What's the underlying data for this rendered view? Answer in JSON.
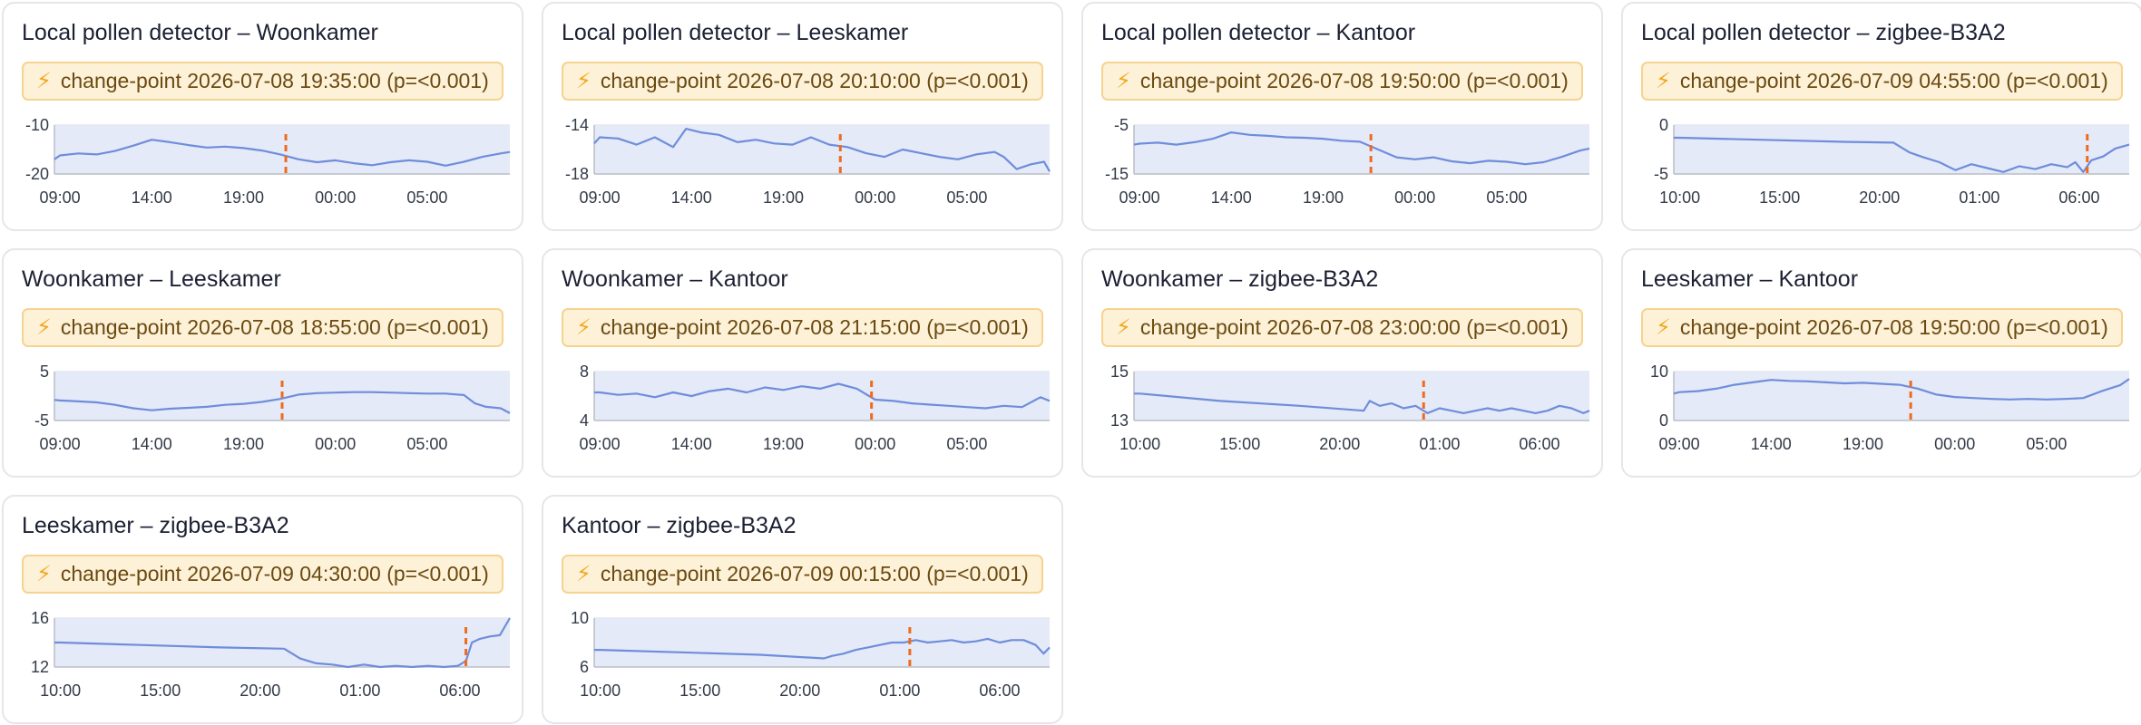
{
  "panels": [
    {
      "title": "Local pollen detector – Woonkamer",
      "badge": "change-point 2026-07-08 19:35:00 (p=<0.001)",
      "chart_data": {
        "type": "area",
        "y_ticks": [
          "-10",
          "-20"
        ],
        "ylim": [
          -20,
          -10
        ],
        "x_ticks": [
          {
            "label": "09:00",
            "t": 0
          },
          {
            "label": "14:00",
            "t": 5
          },
          {
            "label": "19:00",
            "t": 10
          },
          {
            "label": "00:00",
            "t": 15
          },
          {
            "label": "05:00",
            "t": 20
          }
        ],
        "xlim": [
          -0.3,
          24.5
        ],
        "change_point": 12.3,
        "x": [
          -0.3,
          0,
          1,
          2,
          3,
          4,
          5,
          6,
          7,
          8,
          9,
          10,
          11,
          12,
          13,
          14,
          15,
          16,
          17,
          18,
          19,
          20,
          21,
          22,
          23,
          24,
          24.5
        ],
        "y": [
          -17,
          -16.2,
          -15.8,
          -16.0,
          -15.3,
          -14.2,
          -13.0,
          -13.5,
          -14.1,
          -14.6,
          -14.4,
          -14.7,
          -15.2,
          -16.0,
          -17.0,
          -17.6,
          -17.2,
          -17.8,
          -18.2,
          -17.6,
          -17.2,
          -17.5,
          -18.3,
          -17.5,
          -16.5,
          -15.8,
          -15.5
        ]
      }
    },
    {
      "title": "Local pollen detector – Leeskamer",
      "badge": "change-point 2026-07-08 20:10:00 (p=<0.001)",
      "chart_data": {
        "type": "area",
        "y_ticks": [
          "-14",
          "-18"
        ],
        "ylim": [
          -18,
          -14
        ],
        "x_ticks": [
          {
            "label": "09:00",
            "t": 0
          },
          {
            "label": "14:00",
            "t": 5
          },
          {
            "label": "19:00",
            "t": 10
          },
          {
            "label": "00:00",
            "t": 15
          },
          {
            "label": "05:00",
            "t": 20
          }
        ],
        "xlim": [
          -0.3,
          24.5
        ],
        "change_point": 13.1,
        "x": [
          -0.3,
          0,
          1,
          2,
          3,
          4,
          4.7,
          5.5,
          6.5,
          7.5,
          8.5,
          9.5,
          10.5,
          11.5,
          12.5,
          13.5,
          14.5,
          15.5,
          16.5,
          17.5,
          18.5,
          19.5,
          20.5,
          21.5,
          22,
          22.7,
          23.5,
          24.2,
          24.5
        ],
        "y": [
          -15.5,
          -15.0,
          -15.1,
          -15.6,
          -15.0,
          -15.8,
          -14.3,
          -14.6,
          -14.8,
          -15.4,
          -15.2,
          -15.5,
          -15.6,
          -15.0,
          -15.6,
          -15.8,
          -16.3,
          -16.6,
          -16.0,
          -16.3,
          -16.6,
          -16.8,
          -16.4,
          -16.2,
          -16.6,
          -17.6,
          -17.2,
          -17.0,
          -17.8
        ]
      }
    },
    {
      "title": "Local pollen detector – Kantoor",
      "badge": "change-point 2026-07-08 19:50:00 (p=<0.001)",
      "chart_data": {
        "type": "area",
        "y_ticks": [
          "-5",
          "-15"
        ],
        "ylim": [
          -15,
          -5
        ],
        "x_ticks": [
          {
            "label": "09:00",
            "t": 0
          },
          {
            "label": "14:00",
            "t": 5
          },
          {
            "label": "19:00",
            "t": 10
          },
          {
            "label": "00:00",
            "t": 15
          },
          {
            "label": "05:00",
            "t": 20
          }
        ],
        "xlim": [
          -0.3,
          24.5
        ],
        "change_point": 12.6,
        "x": [
          -0.3,
          0,
          1,
          2,
          3,
          4,
          5,
          6,
          7,
          8,
          9,
          10,
          11,
          12,
          13,
          14,
          15,
          16,
          17,
          18,
          19,
          20,
          21,
          22,
          23,
          24,
          24.5
        ],
        "y": [
          -9,
          -8.8,
          -8.6,
          -9.0,
          -8.5,
          -7.8,
          -6.5,
          -7.0,
          -7.2,
          -7.5,
          -7.6,
          -7.8,
          -8.2,
          -8.4,
          -10.0,
          -11.6,
          -12.0,
          -11.6,
          -12.4,
          -12.8,
          -12.3,
          -12.5,
          -13.0,
          -12.6,
          -11.5,
          -10.2,
          -9.8
        ]
      }
    },
    {
      "title": "Local pollen detector – zigbee-B3A2",
      "badge": "change-point 2026-07-09 04:55:00 (p=<0.001)",
      "chart_data": {
        "type": "area",
        "y_ticks": [
          "0",
          "-5"
        ],
        "ylim": [
          -5,
          0
        ],
        "x_ticks": [
          {
            "label": "10:00",
            "t": 0
          },
          {
            "label": "15:00",
            "t": 5
          },
          {
            "label": "20:00",
            "t": 10
          },
          {
            "label": "01:00",
            "t": 15
          },
          {
            "label": "06:00",
            "t": 20
          }
        ],
        "xlim": [
          -0.3,
          22.5
        ],
        "change_point": 20.4,
        "x": [
          -0.3,
          0,
          4,
          8,
          10.7,
          11.5,
          12.2,
          13,
          13.8,
          14.6,
          15.4,
          16.2,
          17,
          17.8,
          18.6,
          19.4,
          19.8,
          20.2,
          20.6,
          21.2,
          21.8,
          22.5
        ],
        "y": [
          -1.3,
          -1.3,
          -1.5,
          -1.7,
          -1.8,
          -2.8,
          -3.3,
          -3.8,
          -4.6,
          -4.0,
          -4.4,
          -4.8,
          -4.2,
          -4.5,
          -4.0,
          -4.3,
          -3.8,
          -4.8,
          -3.6,
          -3.2,
          -2.4,
          -2.0
        ]
      }
    },
    {
      "title": "Woonkamer – Leeskamer",
      "badge": "change-point 2026-07-08 18:55:00 (p=<0.001)",
      "chart_data": {
        "type": "area",
        "y_ticks": [
          "5",
          "-5"
        ],
        "ylim": [
          -5,
          5
        ],
        "x_ticks": [
          {
            "label": "09:00",
            "t": 0
          },
          {
            "label": "14:00",
            "t": 5
          },
          {
            "label": "19:00",
            "t": 10
          },
          {
            "label": "00:00",
            "t": 15
          },
          {
            "label": "05:00",
            "t": 20
          }
        ],
        "xlim": [
          -0.3,
          24.5
        ],
        "change_point": 12.1,
        "x": [
          -0.3,
          0,
          1,
          2,
          3,
          4,
          5,
          6,
          7,
          8,
          9,
          10,
          11,
          12,
          13,
          14,
          15,
          16,
          17,
          18,
          19,
          20,
          21,
          22,
          22.6,
          23.2,
          24,
          24.5
        ],
        "y": [
          -0.8,
          -0.9,
          -1.1,
          -1.3,
          -1.8,
          -2.5,
          -2.9,
          -2.6,
          -2.4,
          -2.2,
          -1.8,
          -1.6,
          -1.2,
          -0.6,
          0.3,
          0.6,
          0.7,
          0.8,
          0.8,
          0.7,
          0.6,
          0.5,
          0.5,
          0.2,
          -1.5,
          -2.2,
          -2.5,
          -3.5
        ]
      }
    },
    {
      "title": "Woonkamer – Kantoor",
      "badge": "change-point 2026-07-08 21:15:00 (p=<0.001)",
      "chart_data": {
        "type": "area",
        "y_ticks": [
          "8",
          "4"
        ],
        "ylim": [
          4,
          8
        ],
        "x_ticks": [
          {
            "label": "09:00",
            "t": 0
          },
          {
            "label": "14:00",
            "t": 5
          },
          {
            "label": "19:00",
            "t": 10
          },
          {
            "label": "00:00",
            "t": 15
          },
          {
            "label": "05:00",
            "t": 20
          }
        ],
        "xlim": [
          -0.3,
          24.5
        ],
        "change_point": 14.8,
        "x": [
          -0.3,
          0,
          1,
          2,
          3,
          4,
          5,
          6,
          7,
          8,
          9,
          10,
          11,
          12,
          13,
          14,
          15,
          16,
          17,
          18,
          19,
          20,
          21,
          22,
          23,
          24,
          24.5
        ],
        "y": [
          6.3,
          6.3,
          6.1,
          6.2,
          5.9,
          6.3,
          6.0,
          6.4,
          6.6,
          6.3,
          6.7,
          6.5,
          6.8,
          6.6,
          7.0,
          6.6,
          5.7,
          5.6,
          5.4,
          5.3,
          5.2,
          5.1,
          5.0,
          5.2,
          5.1,
          5.9,
          5.6
        ]
      }
    },
    {
      "title": "Woonkamer – zigbee-B3A2",
      "badge": "change-point 2026-07-08 23:00:00 (p=<0.001)",
      "chart_data": {
        "type": "area",
        "y_ticks": [
          "15",
          "13"
        ],
        "ylim": [
          13,
          15
        ],
        "x_ticks": [
          {
            "label": "10:00",
            "t": 0
          },
          {
            "label": "15:00",
            "t": 5
          },
          {
            "label": "20:00",
            "t": 10
          },
          {
            "label": "01:00",
            "t": 15
          },
          {
            "label": "06:00",
            "t": 20
          }
        ],
        "xlim": [
          -0.3,
          22.5
        ],
        "change_point": 14.2,
        "x": [
          -0.3,
          0,
          4,
          8,
          11.2,
          11.5,
          12.0,
          12.6,
          13.2,
          13.8,
          14.4,
          15.0,
          15.6,
          16.2,
          16.8,
          17.4,
          18.0,
          18.6,
          19.2,
          19.8,
          20.4,
          21.0,
          21.6,
          22.2,
          22.5
        ],
        "y": [
          14.1,
          14.1,
          13.8,
          13.6,
          13.4,
          13.8,
          13.6,
          13.7,
          13.5,
          13.6,
          13.3,
          13.5,
          13.4,
          13.3,
          13.4,
          13.5,
          13.4,
          13.5,
          13.4,
          13.3,
          13.4,
          13.6,
          13.5,
          13.3,
          13.4
        ]
      }
    },
    {
      "title": "Leeskamer – Kantoor",
      "badge": "change-point 2026-07-08 19:50:00 (p=<0.001)",
      "chart_data": {
        "type": "area",
        "y_ticks": [
          "10",
          "0"
        ],
        "ylim": [
          0,
          10
        ],
        "x_ticks": [
          {
            "label": "09:00",
            "t": 0
          },
          {
            "label": "14:00",
            "t": 5
          },
          {
            "label": "19:00",
            "t": 10
          },
          {
            "label": "00:00",
            "t": 15
          },
          {
            "label": "05:00",
            "t": 20
          }
        ],
        "xlim": [
          -0.3,
          24.5
        ],
        "change_point": 12.6,
        "x": [
          -0.3,
          0,
          1,
          2,
          3,
          4,
          5,
          6,
          7,
          8,
          9,
          10,
          11,
          12,
          13,
          14,
          15,
          16,
          17,
          18,
          19,
          20,
          21,
          22,
          23,
          24,
          24.5
        ],
        "y": [
          5.5,
          5.8,
          6.0,
          6.5,
          7.3,
          7.8,
          8.3,
          8.1,
          8.0,
          7.8,
          7.6,
          7.7,
          7.5,
          7.3,
          6.5,
          5.3,
          4.8,
          4.6,
          4.4,
          4.3,
          4.4,
          4.3,
          4.4,
          4.6,
          6.0,
          7.2,
          8.5
        ]
      }
    },
    {
      "title": "Leeskamer – zigbee-B3A2",
      "badge": "change-point 2026-07-09 04:30:00 (p=<0.001)",
      "chart_data": {
        "type": "area",
        "y_ticks": [
          "16",
          "12"
        ],
        "ylim": [
          12,
          16
        ],
        "x_ticks": [
          {
            "label": "10:00",
            "t": 0
          },
          {
            "label": "15:00",
            "t": 5
          },
          {
            "label": "20:00",
            "t": 10
          },
          {
            "label": "01:00",
            "t": 15
          },
          {
            "label": "06:00",
            "t": 20
          }
        ],
        "xlim": [
          -0.3,
          22.5
        ],
        "change_point": 20.3,
        "x": [
          -0.3,
          0,
          4,
          8,
          11.2,
          12.0,
          12.8,
          13.6,
          14.4,
          15.2,
          16.0,
          16.8,
          17.6,
          18.4,
          19.2,
          19.9,
          20.3,
          20.6,
          21.0,
          21.5,
          22.0,
          22.5
        ],
        "y": [
          14.0,
          14.0,
          13.8,
          13.6,
          13.5,
          12.7,
          12.3,
          12.2,
          12.0,
          12.2,
          12.0,
          12.1,
          12.0,
          12.1,
          12.0,
          12.1,
          12.5,
          14.0,
          14.3,
          14.5,
          14.6,
          16.0
        ]
      }
    },
    {
      "title": "Kantoor – zigbee-B3A2",
      "badge": "change-point 2026-07-09 00:15:00 (p=<0.001)",
      "chart_data": {
        "type": "area",
        "y_ticks": [
          "10",
          "6"
        ],
        "ylim": [
          6,
          10
        ],
        "x_ticks": [
          {
            "label": "10:00",
            "t": 0
          },
          {
            "label": "15:00",
            "t": 5
          },
          {
            "label": "20:00",
            "t": 10
          },
          {
            "label": "01:00",
            "t": 15
          },
          {
            "label": "06:00",
            "t": 20
          }
        ],
        "xlim": [
          -0.3,
          22.5
        ],
        "change_point": 15.5,
        "x": [
          -0.3,
          0,
          4,
          8,
          11.2,
          11.6,
          12.2,
          12.8,
          13.4,
          14.0,
          14.6,
          15.2,
          15.8,
          16.4,
          17.0,
          17.6,
          18.2,
          18.8,
          19.4,
          20.0,
          20.6,
          21.2,
          21.8,
          22.2,
          22.5
        ],
        "y": [
          7.4,
          7.4,
          7.2,
          7.0,
          6.7,
          6.9,
          7.1,
          7.4,
          7.6,
          7.8,
          8.0,
          8.0,
          8.2,
          8.0,
          8.1,
          8.2,
          8.0,
          8.1,
          8.3,
          8.0,
          8.2,
          8.2,
          7.8,
          7.1,
          7.6
        ]
      }
    }
  ]
}
